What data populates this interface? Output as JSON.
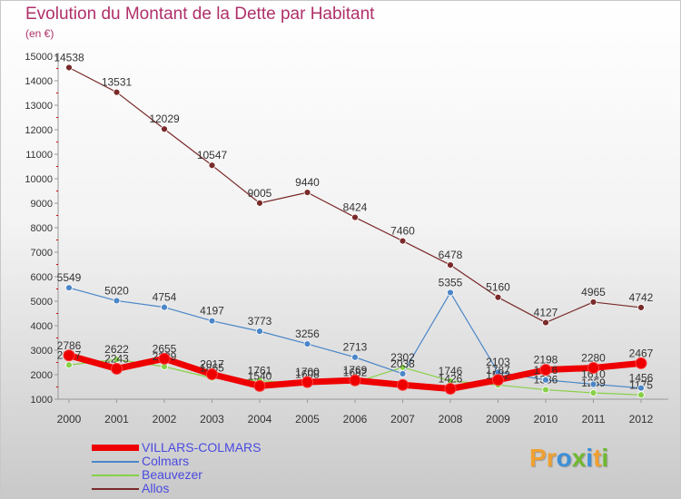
{
  "title": "Evolution du Montant de la Dette par Habitant",
  "subtitle": "(en €)",
  "logo": {
    "letters": [
      "P",
      "r",
      "o",
      "x",
      "i",
      "t",
      "i"
    ],
    "colors": [
      "#f0a030",
      "#f0a030",
      "#3c8fd8",
      "#70b830",
      "#3c8fd8",
      "#f0a030",
      "#70b830"
    ]
  },
  "chart_data": {
    "type": "line",
    "x": [
      "2000",
      "2001",
      "2002",
      "2003",
      "2004",
      "2005",
      "2006",
      "2007",
      "2008",
      "2009",
      "2010",
      "2011",
      "2012"
    ],
    "ylim": [
      1000,
      15000
    ],
    "yticks": [
      1000,
      2000,
      3000,
      4000,
      5000,
      6000,
      7000,
      8000,
      9000,
      10000,
      11000,
      12000,
      13000,
      14000,
      15000
    ],
    "grid": false,
    "legend_position": "bottom-left",
    "series": [
      {
        "name": "VILLARS-COLMARS",
        "color": "#ee0000",
        "line_width": 7,
        "marker_radius": 6,
        "values": [
          2786,
          2243,
          2655,
          2017,
          1540,
          1700,
          1769,
          1584,
          1426,
          1787,
          2198,
          2280,
          2467
        ],
        "labels": [
          "2786",
          "2243",
          "2655",
          "2017",
          "1540",
          "1700",
          "1769",
          "",
          "1426",
          "1787",
          "2198",
          "2280",
          "2467"
        ]
      },
      {
        "name": "Colmars",
        "color": "#4a86c8",
        "line_width": 1.2,
        "marker_radius": 3.5,
        "values": [
          5549,
          5020,
          4754,
          4197,
          3773,
          3256,
          2713,
          2038,
          5355,
          2103,
          1786,
          1610,
          1456
        ],
        "labels": [
          "5549",
          "5020",
          "4754",
          "4197",
          "3773",
          "3256",
          "2713",
          "2038",
          "5355",
          "2103",
          "1786",
          "1610",
          "1456"
        ]
      },
      {
        "name": "Beauvezer",
        "color": "#88d048",
        "line_width": 1.2,
        "marker_radius": 3.5,
        "values": [
          2397,
          2622,
          2329,
          1865,
          1761,
          1608,
          1682,
          2302,
          1746,
          1582,
          1386,
          1259,
          1175
        ],
        "labels": [
          "2397",
          "2622",
          "2329",
          "1865",
          "1761",
          "1608",
          "1682",
          "2302",
          "1746",
          "1582",
          "1386",
          "1259",
          "1175"
        ]
      },
      {
        "name": "Allos",
        "color": "#7a2a2a",
        "line_width": 1.2,
        "marker_radius": 3.5,
        "values": [
          14538,
          13531,
          12029,
          10547,
          9005,
          9440,
          8424,
          7460,
          6478,
          5160,
          4127,
          4965,
          4742
        ],
        "labels": [
          "14538",
          "13531",
          "12029",
          "10547",
          "9005",
          "9440",
          "8424",
          "7460",
          "6478",
          "5160",
          "4127",
          "4965",
          "4742"
        ]
      }
    ]
  }
}
